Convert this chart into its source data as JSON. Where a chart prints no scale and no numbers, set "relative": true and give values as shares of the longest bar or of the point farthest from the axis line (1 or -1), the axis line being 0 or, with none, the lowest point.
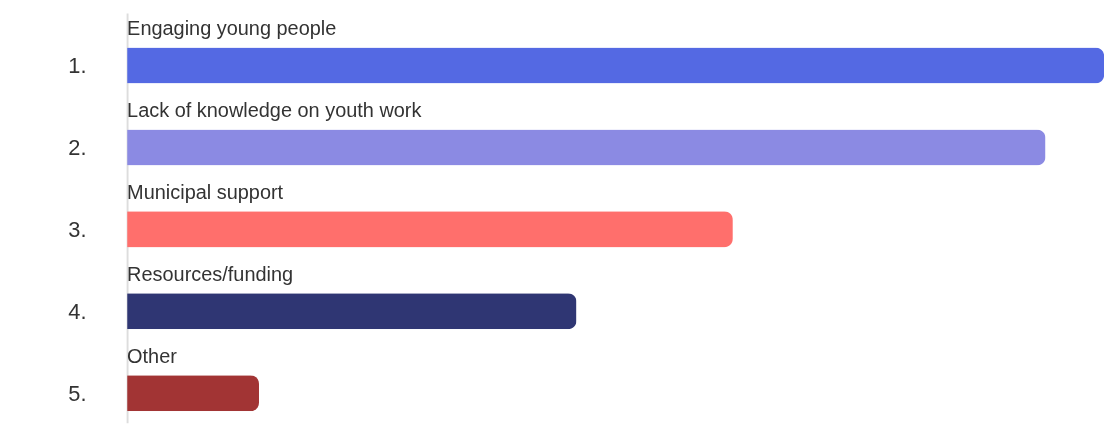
{
  "chart_data": {
    "type": "bar",
    "orientation": "horizontal",
    "relative": true,
    "categories": [
      "Engaging young people",
      "Lack of knowledge on youth work",
      "Municipal support",
      "Resources/funding",
      "Other"
    ],
    "values": [
      1,
      0.94,
      0.62,
      0.46,
      0.135
    ],
    "colors": [
      "#5469e3",
      "#8b8ae3",
      "#ff6f6c",
      "#2f3673",
      "#a23434"
    ],
    "annotations": [
      "1.",
      "2.",
      "3.",
      "4.",
      "5."
    ]
  }
}
